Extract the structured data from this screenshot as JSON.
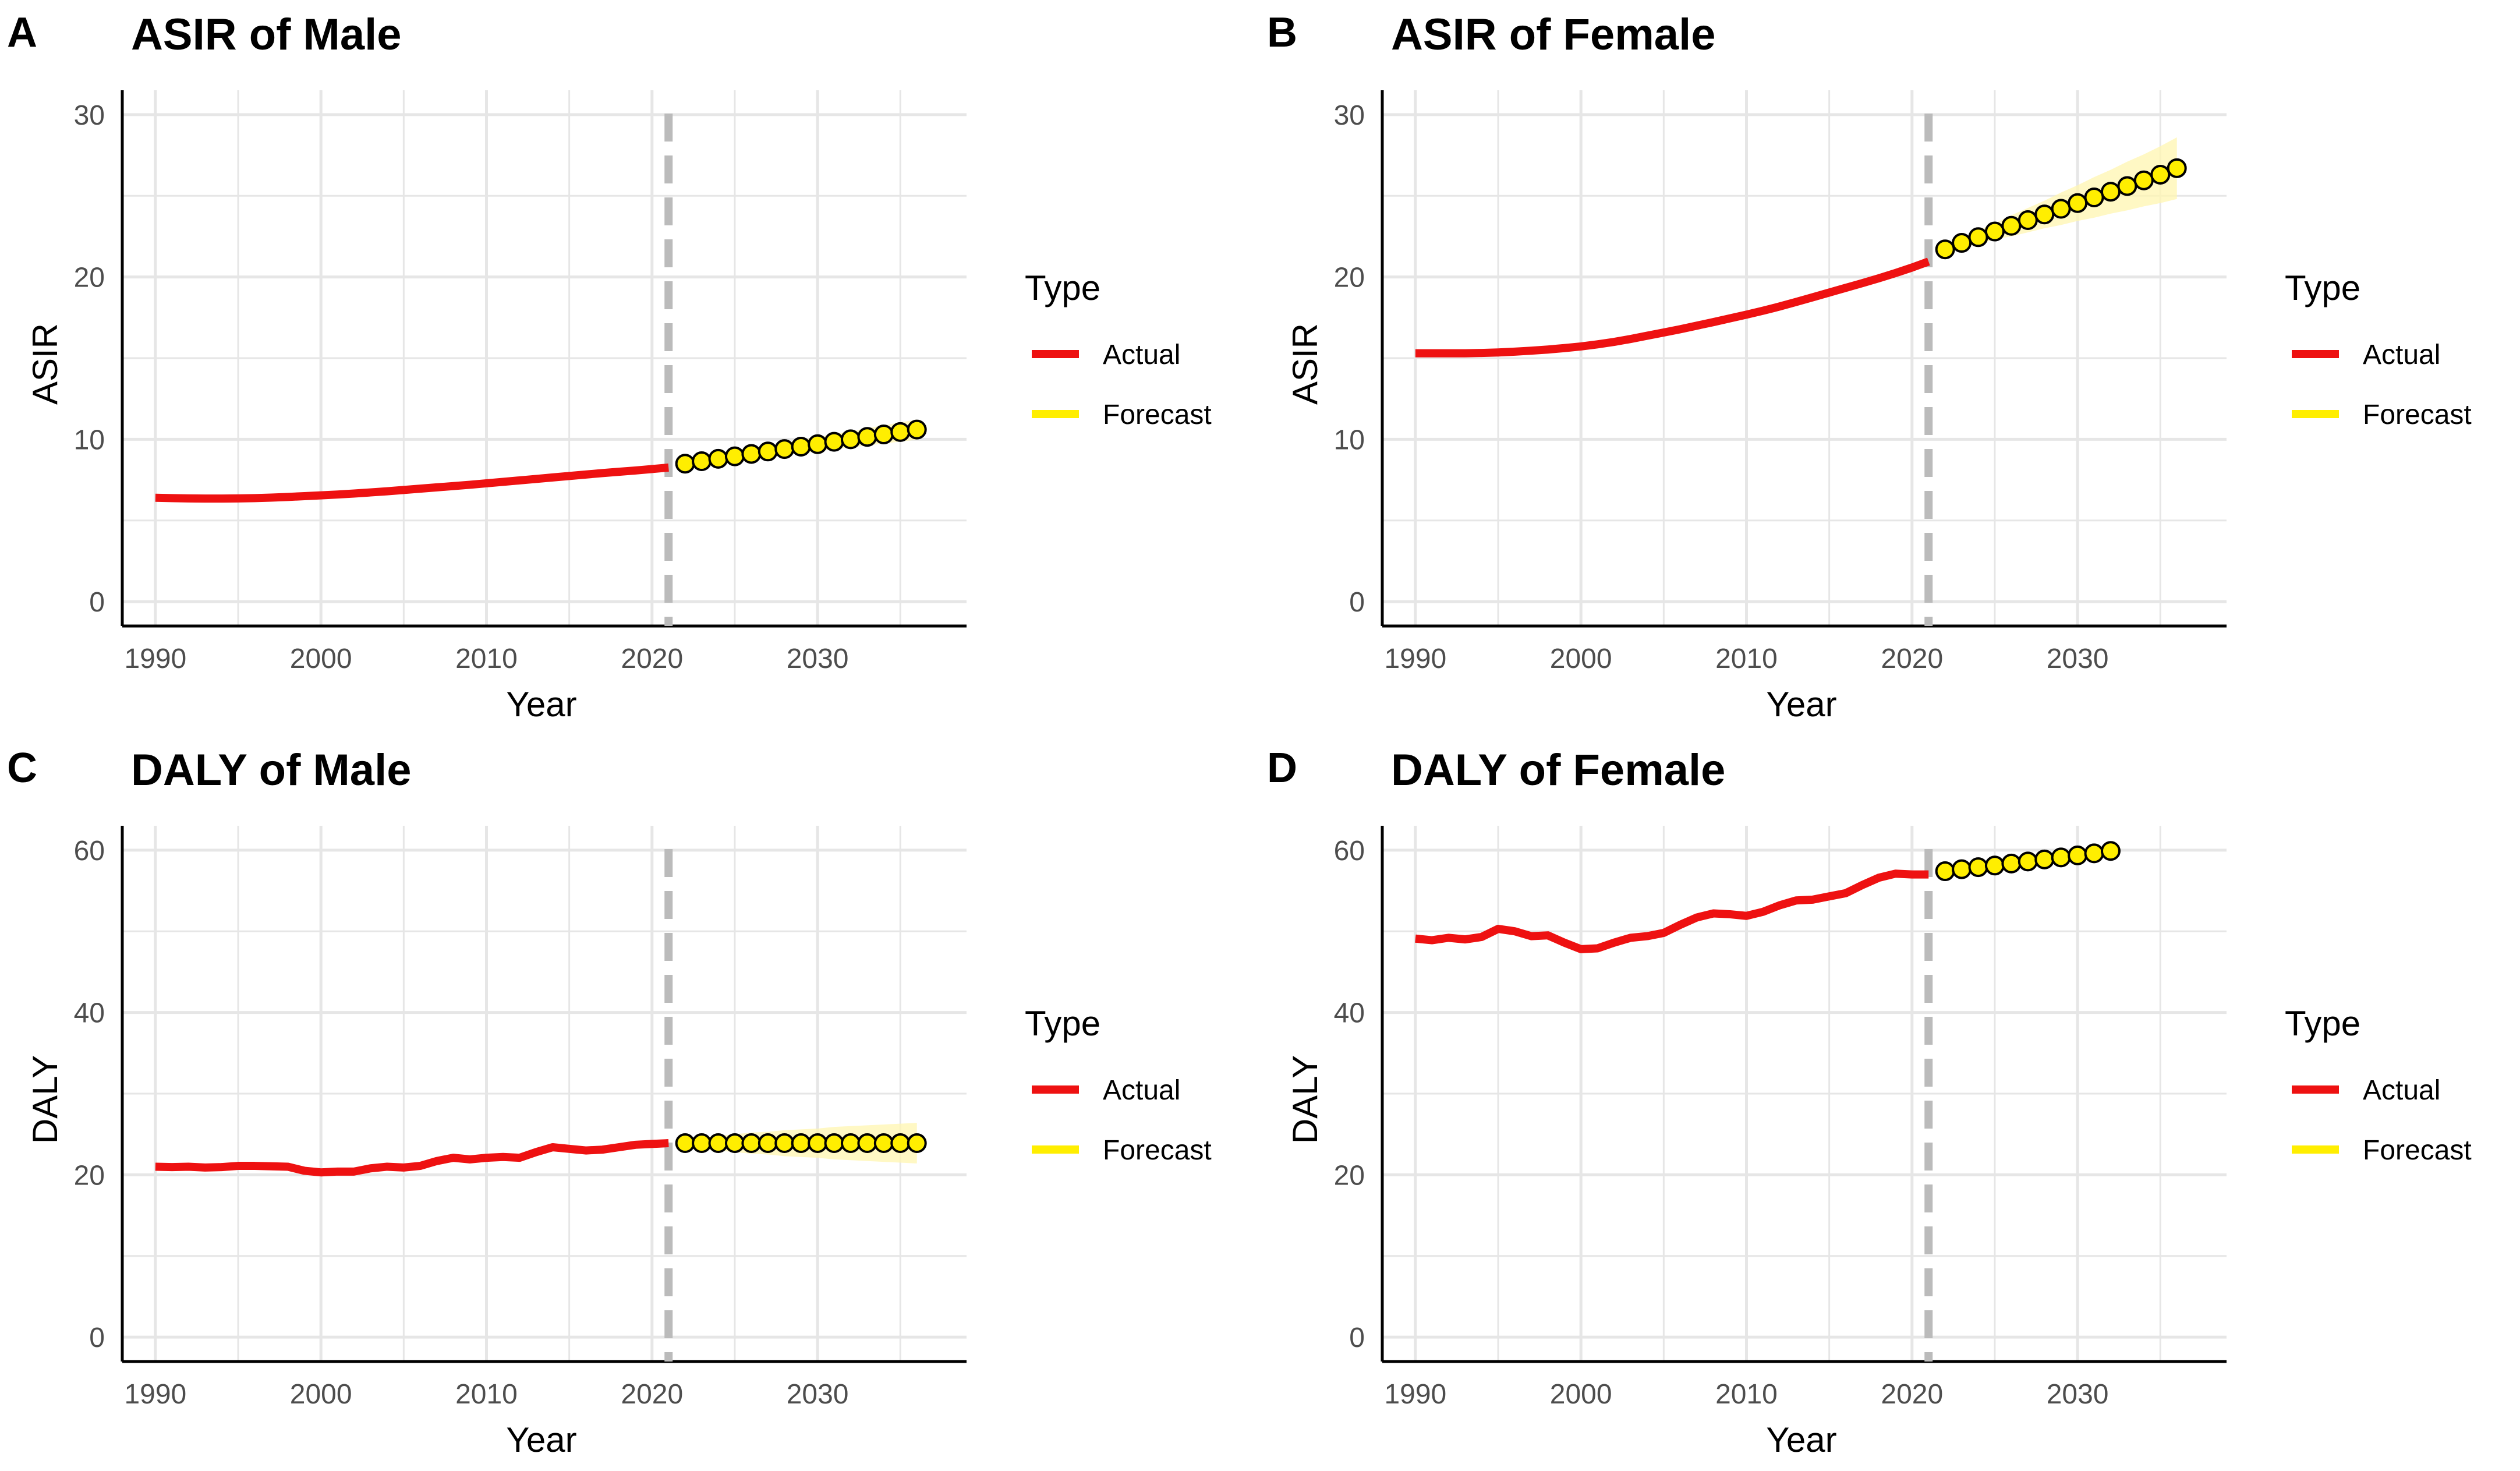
{
  "colors": {
    "actual": "#ee1111",
    "forecast": "#ffee00",
    "forecast_band": "#fff6b0",
    "vline": "#bbbbbb",
    "grid": "#e6e6e6"
  },
  "legend": {
    "title": "Type",
    "items": [
      "Actual",
      "Forecast"
    ]
  },
  "chart_data": [
    {
      "letter": "A",
      "type": "line",
      "title": "ASIR of Male",
      "xlabel": "Year",
      "ylabel": "ASIR",
      "xlim": [
        1988,
        2039
      ],
      "ylim": [
        -1.5,
        31.5
      ],
      "xticks": [
        1990,
        2000,
        2010,
        2020,
        2030
      ],
      "yticks": [
        0,
        10,
        20,
        30
      ],
      "vline": 2021,
      "series": [
        {
          "name": "Actual",
          "x": [
            1990,
            1991,
            1992,
            1993,
            1994,
            1995,
            1996,
            1997,
            1998,
            1999,
            2000,
            2001,
            2002,
            2003,
            2004,
            2005,
            2006,
            2007,
            2008,
            2009,
            2010,
            2011,
            2012,
            2013,
            2014,
            2015,
            2016,
            2017,
            2018,
            2019,
            2020,
            2021
          ],
          "values": [
            6.4,
            6.38,
            6.36,
            6.35,
            6.35,
            6.36,
            6.38,
            6.41,
            6.45,
            6.5,
            6.55,
            6.6,
            6.66,
            6.73,
            6.8,
            6.88,
            6.96,
            7.04,
            7.12,
            7.2,
            7.29,
            7.38,
            7.47,
            7.56,
            7.65,
            7.74,
            7.83,
            7.92,
            8.0,
            8.08,
            8.17,
            8.26
          ]
        },
        {
          "name": "Forecast",
          "x": [
            2022,
            2023,
            2024,
            2025,
            2026,
            2027,
            2028,
            2029,
            2030,
            2031,
            2032,
            2033,
            2034,
            2035,
            2036
          ],
          "values": [
            8.5,
            8.65,
            8.8,
            8.95,
            9.1,
            9.25,
            9.4,
            9.55,
            9.7,
            9.85,
            10.0,
            10.15,
            10.3,
            10.45,
            10.6
          ],
          "lower": [
            8.3,
            8.42,
            8.54,
            8.66,
            8.78,
            8.9,
            9.02,
            9.14,
            9.26,
            9.38,
            9.5,
            9.62,
            9.74,
            9.86,
            9.98
          ],
          "upper": [
            8.7,
            8.88,
            9.06,
            9.24,
            9.42,
            9.6,
            9.78,
            9.96,
            10.14,
            10.32,
            10.5,
            10.68,
            10.86,
            11.04,
            11.22
          ]
        }
      ]
    },
    {
      "letter": "B",
      "type": "line",
      "title": "ASIR of Female",
      "xlabel": "Year",
      "ylabel": "ASIR",
      "xlim": [
        1988,
        2039
      ],
      "ylim": [
        -1.5,
        31.5
      ],
      "xticks": [
        1990,
        2000,
        2010,
        2020,
        2030
      ],
      "yticks": [
        0,
        10,
        20,
        30
      ],
      "vline": 2021,
      "series": [
        {
          "name": "Actual",
          "x": [
            1990,
            1991,
            1992,
            1993,
            1994,
            1995,
            1996,
            1997,
            1998,
            1999,
            2000,
            2001,
            2002,
            2003,
            2004,
            2005,
            2006,
            2007,
            2008,
            2009,
            2010,
            2011,
            2012,
            2013,
            2014,
            2015,
            2016,
            2017,
            2018,
            2019,
            2020,
            2021
          ],
          "values": [
            15.3,
            15.3,
            15.3,
            15.3,
            15.32,
            15.35,
            15.4,
            15.46,
            15.53,
            15.62,
            15.72,
            15.85,
            16.0,
            16.18,
            16.38,
            16.58,
            16.78,
            17.0,
            17.22,
            17.45,
            17.68,
            17.92,
            18.18,
            18.46,
            18.75,
            19.04,
            19.33,
            19.62,
            19.92,
            20.24,
            20.58,
            20.95
          ]
        },
        {
          "name": "Forecast",
          "x": [
            2022,
            2023,
            2024,
            2025,
            2026,
            2027,
            2028,
            2029,
            2030,
            2031,
            2032,
            2033,
            2034,
            2035,
            2036
          ],
          "values": [
            21.7,
            22.1,
            22.45,
            22.8,
            23.15,
            23.5,
            23.85,
            24.2,
            24.55,
            24.9,
            25.25,
            25.6,
            25.95,
            26.3,
            26.7
          ],
          "lower": [
            21.5,
            21.8,
            22.05,
            22.3,
            22.5,
            22.75,
            23.0,
            23.2,
            23.45,
            23.65,
            23.9,
            24.1,
            24.35,
            24.55,
            24.8
          ],
          "upper": [
            21.9,
            22.4,
            22.85,
            23.3,
            23.8,
            24.25,
            24.7,
            25.2,
            25.65,
            26.15,
            26.6,
            27.1,
            27.55,
            28.05,
            28.6
          ]
        }
      ]
    },
    {
      "letter": "C",
      "type": "line",
      "title": "DALY of Male",
      "xlabel": "Year",
      "ylabel": "DALY",
      "xlim": [
        1988,
        2039
      ],
      "ylim": [
        -3,
        63
      ],
      "xticks": [
        1990,
        2000,
        2010,
        2020,
        2030
      ],
      "yticks": [
        0,
        20,
        40,
        60
      ],
      "vline": 2021,
      "series": [
        {
          "name": "Actual",
          "x": [
            1990,
            1991,
            1992,
            1993,
            1994,
            1995,
            1996,
            1997,
            1998,
            1999,
            2000,
            2001,
            2002,
            2003,
            2004,
            2005,
            2006,
            2007,
            2008,
            2009,
            2010,
            2011,
            2012,
            2013,
            2014,
            2015,
            2016,
            2017,
            2018,
            2019,
            2020,
            2021
          ],
          "values": [
            21.0,
            20.95,
            21.0,
            20.9,
            20.95,
            21.1,
            21.1,
            21.05,
            21.0,
            20.5,
            20.3,
            20.4,
            20.4,
            20.8,
            21.0,
            20.9,
            21.1,
            21.7,
            22.1,
            21.9,
            22.1,
            22.2,
            22.1,
            22.8,
            23.4,
            23.2,
            23.0,
            23.1,
            23.4,
            23.7,
            23.8,
            23.9
          ]
        },
        {
          "name": "Forecast",
          "x": [
            2022,
            2023,
            2024,
            2025,
            2026,
            2027,
            2028,
            2029,
            2030,
            2031,
            2032,
            2033,
            2034,
            2035,
            2036
          ],
          "values": [
            23.9,
            23.9,
            23.9,
            23.9,
            23.9,
            23.9,
            23.9,
            23.9,
            23.9,
            23.9,
            23.9,
            23.9,
            23.9,
            23.9,
            23.9
          ],
          "lower": [
            23.4,
            23.2,
            23.0,
            22.8,
            22.6,
            22.5,
            22.3,
            22.2,
            22.1,
            21.9,
            21.8,
            21.7,
            21.6,
            21.5,
            21.4
          ],
          "upper": [
            24.4,
            24.6,
            24.8,
            25.0,
            25.2,
            25.3,
            25.5,
            25.6,
            25.7,
            25.9,
            26.0,
            26.1,
            26.2,
            26.3,
            26.4
          ]
        }
      ]
    },
    {
      "letter": "D",
      "type": "line",
      "title": "DALY of Female",
      "xlabel": "Year",
      "ylabel": "DALY",
      "xlim": [
        1988,
        2039
      ],
      "ylim": [
        -3,
        63
      ],
      "xticks": [
        1990,
        2000,
        2010,
        2020,
        2030
      ],
      "yticks": [
        0,
        20,
        40,
        60
      ],
      "vline": 2021,
      "series": [
        {
          "name": "Actual",
          "x": [
            1990,
            1991,
            1992,
            1993,
            1994,
            1995,
            1996,
            1997,
            1998,
            1999,
            2000,
            2001,
            2002,
            2003,
            2004,
            2005,
            2006,
            2007,
            2008,
            2009,
            2010,
            2011,
            2012,
            2013,
            2014,
            2015,
            2016,
            2017,
            2018,
            2019,
            2020,
            2021
          ],
          "values": [
            49.1,
            48.9,
            49.2,
            49.0,
            49.3,
            50.3,
            50.0,
            49.4,
            49.5,
            48.6,
            47.8,
            47.9,
            48.6,
            49.2,
            49.4,
            49.8,
            50.8,
            51.7,
            52.2,
            52.1,
            51.9,
            52.4,
            53.2,
            53.8,
            53.9,
            54.3,
            54.7,
            55.7,
            56.6,
            57.1,
            57.0,
            57.0
          ]
        },
        {
          "name": "Forecast",
          "x": [
            2022,
            2023,
            2024,
            2025,
            2026,
            2027,
            2028,
            2029,
            2030,
            2031,
            2032
          ],
          "values": [
            57.4,
            57.65,
            57.9,
            58.1,
            58.35,
            58.6,
            58.85,
            59.1,
            59.35,
            59.6,
            59.9
          ],
          "lower": [
            57.2,
            57.4,
            57.6,
            57.8,
            58.0,
            58.2,
            58.4,
            58.6,
            58.8,
            59.0,
            59.2
          ],
          "upper": [
            57.6,
            57.9,
            58.2,
            58.4,
            58.7,
            59.0,
            59.3,
            59.6,
            59.9,
            60.2,
            60.6
          ]
        }
      ]
    }
  ]
}
